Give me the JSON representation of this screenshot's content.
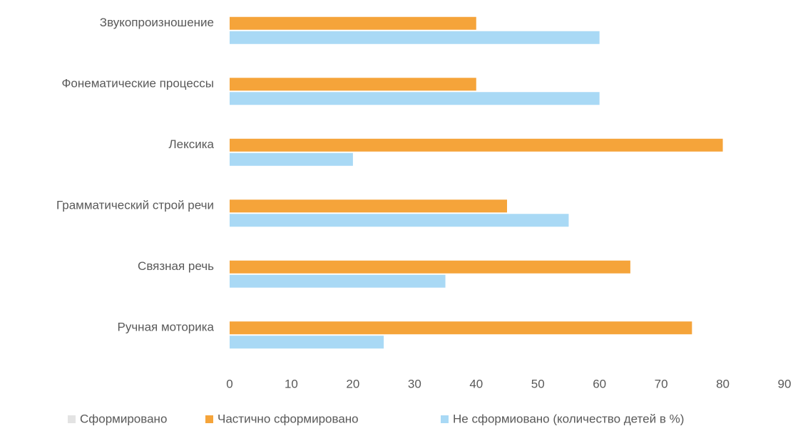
{
  "chart_data": {
    "type": "bar",
    "orientation": "horizontal",
    "categories": [
      "Звукопроизношение",
      "Фонематические процессы",
      "Лексика",
      "Грамматический строй речи",
      "Связная речь",
      "Ручная моторика"
    ],
    "series": [
      {
        "name": "Сформировано",
        "color": "#e3e3e3",
        "values": [
          0,
          0,
          0,
          0,
          0,
          0
        ]
      },
      {
        "name": "Частично сформировано",
        "color": "#f5a43a",
        "values": [
          40,
          40,
          80,
          45,
          65,
          75
        ]
      },
      {
        "name": "Не сформиовано (количество детей в %)",
        "color": "#a9d9f5",
        "values": [
          60,
          60,
          20,
          55,
          35,
          25
        ]
      }
    ],
    "xlim": [
      0,
      90
    ],
    "xticks": [
      0,
      10,
      20,
      30,
      40,
      50,
      60,
      70,
      80,
      90
    ],
    "grid": false,
    "legend": "bottom"
  }
}
